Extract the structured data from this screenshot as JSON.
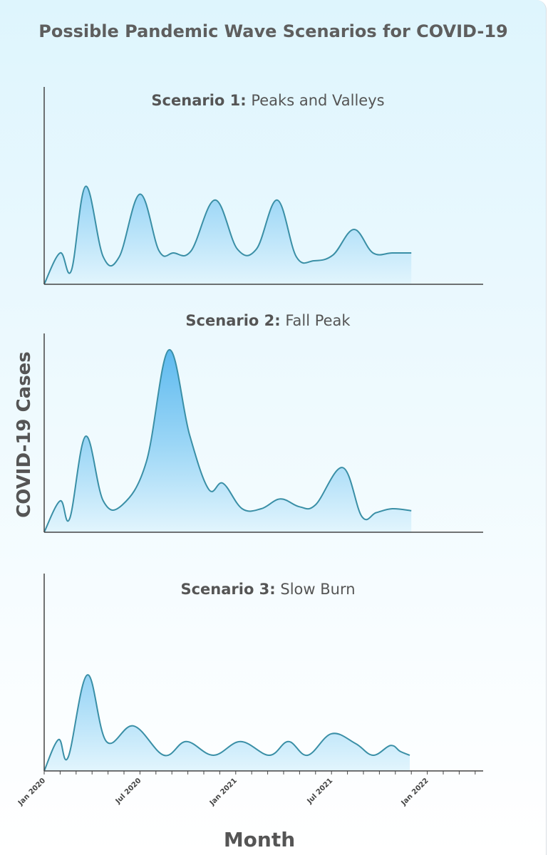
{
  "title": "Possible Pandemic Wave Scenarios for COVID-19",
  "ylabel": "COVID-19 Cases",
  "xlabel": "Month",
  "colors": {
    "line": "#3a8fa6",
    "fill_top": "#55b6ee",
    "fill_bottom": "#e2f5fd",
    "axis": "#444444"
  },
  "chart_data": [
    {
      "type": "area",
      "title_bold": "Scenario 1:",
      "title_rest": " Peaks and Valleys",
      "x": [
        0,
        1,
        1.7,
        2.6,
        3.7,
        4.7,
        6.0,
        7.2,
        8.1,
        9.2,
        10.7,
        12.1,
        13.3,
        14.6,
        15.8,
        16.9,
        18.1,
        19.4,
        20.6,
        21.8,
        23.0
      ],
      "y": [
        0,
        0.16,
        0.07,
        0.5,
        0.14,
        0.14,
        0.46,
        0.17,
        0.16,
        0.17,
        0.43,
        0.18,
        0.18,
        0.43,
        0.14,
        0.12,
        0.15,
        0.28,
        0.16,
        0.16,
        0.16
      ]
    },
    {
      "type": "area",
      "title_bold": "Scenario 2:",
      "title_rest": " Fall Peak",
      "x": [
        0,
        1,
        1.6,
        2.6,
        3.7,
        4.9,
        6.4,
        7.8,
        9.1,
        10.3,
        11.2,
        12.4,
        13.6,
        14.8,
        16.0,
        17.0,
        18.7,
        19.9,
        20.8,
        21.8,
        23.0
      ],
      "y": [
        0,
        0.16,
        0.07,
        0.49,
        0.16,
        0.14,
        0.36,
        0.93,
        0.5,
        0.22,
        0.25,
        0.12,
        0.12,
        0.17,
        0.13,
        0.14,
        0.33,
        0.08,
        0.1,
        0.12,
        0.11
      ]
    },
    {
      "type": "area",
      "title_bold": "Scenario 3:",
      "title_rest": " Slow Burn",
      "x": [
        0,
        0.9,
        1.5,
        2.7,
        3.9,
        5.6,
        7.5,
        8.9,
        10.6,
        12.3,
        14.1,
        15.3,
        16.5,
        18.0,
        19.5,
        20.6,
        21.7,
        22.3,
        22.9
      ],
      "y": [
        0,
        0.16,
        0.07,
        0.49,
        0.15,
        0.23,
        0.08,
        0.15,
        0.08,
        0.15,
        0.08,
        0.15,
        0.08,
        0.19,
        0.14,
        0.08,
        0.13,
        0.1,
        0.08
      ]
    }
  ],
  "x_ticks": [
    {
      "pos": 0,
      "label": "Jan 2020"
    },
    {
      "pos": 1,
      "label": ""
    },
    {
      "pos": 2,
      "label": ""
    },
    {
      "pos": 3,
      "label": ""
    },
    {
      "pos": 4,
      "label": ""
    },
    {
      "pos": 5,
      "label": ""
    },
    {
      "pos": 6,
      "label": "Jul 2020"
    },
    {
      "pos": 7,
      "label": ""
    },
    {
      "pos": 8,
      "label": ""
    },
    {
      "pos": 9,
      "label": ""
    },
    {
      "pos": 10,
      "label": ""
    },
    {
      "pos": 11,
      "label": ""
    },
    {
      "pos": 12,
      "label": "Jan 2021"
    },
    {
      "pos": 13,
      "label": ""
    },
    {
      "pos": 14,
      "label": ""
    },
    {
      "pos": 15,
      "label": ""
    },
    {
      "pos": 16,
      "label": ""
    },
    {
      "pos": 17,
      "label": ""
    },
    {
      "pos": 18,
      "label": "Jul 2021"
    },
    {
      "pos": 19,
      "label": ""
    },
    {
      "pos": 20,
      "label": ""
    },
    {
      "pos": 21,
      "label": ""
    },
    {
      "pos": 22,
      "label": ""
    },
    {
      "pos": 23,
      "label": ""
    },
    {
      "pos": 24,
      "label": "Jan 2022"
    },
    {
      "pos": 25,
      "label": ""
    },
    {
      "pos": 26,
      "label": ""
    },
    {
      "pos": 27,
      "label": ""
    }
  ],
  "x_range": [
    0,
    27.5
  ]
}
